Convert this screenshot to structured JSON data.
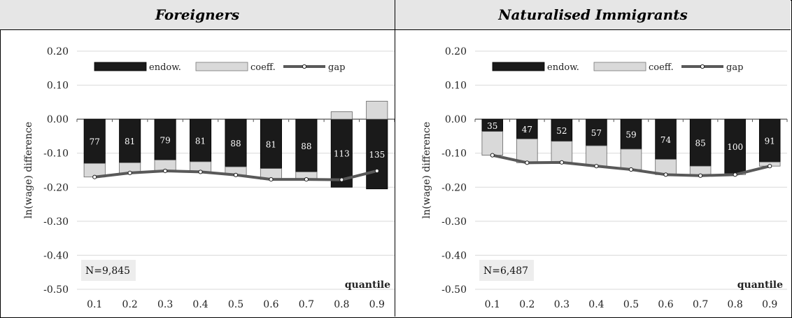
{
  "chart_data": [
    {
      "type": "bar",
      "title": "Foreigners",
      "ylabel": "ln(wage) difference",
      "xlabel": "quantile",
      "ylim": [
        -0.5,
        0.2
      ],
      "yticks": [
        "0.20",
        "0.10",
        "0.00",
        "-0.10",
        "-0.20",
        "-0.30",
        "-0.40",
        "-0.50"
      ],
      "categories": [
        "0.1",
        "0.2",
        "0.3",
        "0.4",
        "0.5",
        "0.6",
        "0.7",
        "0.8",
        "0.9"
      ],
      "legend_position": "top",
      "series": [
        {
          "name": "endow.",
          "color": "#1a1a1a",
          "values": [
            -0.13,
            -0.128,
            -0.12,
            -0.125,
            -0.14,
            -0.145,
            -0.155,
            -0.2,
            -0.205
          ]
        },
        {
          "name": "coeff.",
          "color": "#d9d9d9",
          "values": [
            -0.04,
            -0.03,
            -0.032,
            -0.03,
            -0.024,
            -0.032,
            -0.022,
            0.022,
            0.053
          ]
        },
        {
          "name": "gap",
          "color": "#595959",
          "values": [
            -0.17,
            -0.158,
            -0.152,
            -0.155,
            -0.164,
            -0.177,
            -0.177,
            -0.178,
            -0.152
          ]
        }
      ],
      "bar_labels": [
        "77",
        "81",
        "79",
        "81",
        "88",
        "81",
        "88",
        "113",
        "135"
      ],
      "annotation": "N=9,845"
    },
    {
      "type": "bar",
      "title": "Naturalised Immigrants",
      "ylabel": "ln(wage) difference",
      "xlabel": "quantile",
      "ylim": [
        -0.5,
        0.2
      ],
      "yticks": [
        "0.20",
        "0.10",
        "0.00",
        "-0.10",
        "-0.20",
        "-0.30",
        "-0.40",
        "-0.50"
      ],
      "categories": [
        "0.1",
        "0.2",
        "0.3",
        "0.4",
        "0.5",
        "0.6",
        "0.7",
        "0.8",
        "0.9"
      ],
      "legend_position": "top",
      "series": [
        {
          "name": "endow.",
          "color": "#1a1a1a",
          "values": [
            -0.036,
            -0.058,
            -0.065,
            -0.078,
            -0.088,
            -0.118,
            -0.138,
            -0.16,
            -0.126
          ]
        },
        {
          "name": "coeff.",
          "color": "#d9d9d9",
          "values": [
            -0.07,
            -0.07,
            -0.062,
            -0.06,
            -0.06,
            -0.045,
            -0.028,
            -0.003,
            -0.012
          ]
        },
        {
          "name": "gap",
          "color": "#595959",
          "values": [
            -0.106,
            -0.128,
            -0.127,
            -0.138,
            -0.148,
            -0.163,
            -0.166,
            -0.163,
            -0.138
          ]
        }
      ],
      "bar_labels": [
        "35",
        "47",
        "52",
        "57",
        "59",
        "74",
        "85",
        "100",
        "91"
      ],
      "annotation": "N=6,487"
    }
  ]
}
